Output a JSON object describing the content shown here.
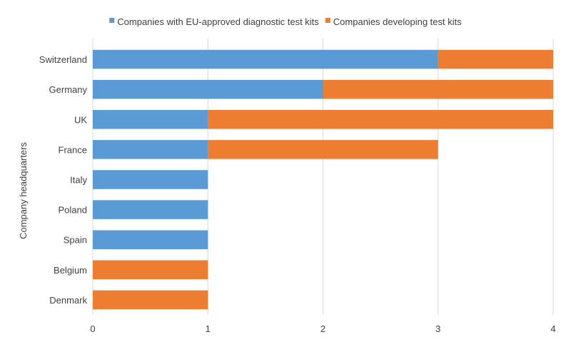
{
  "chart_data": {
    "type": "bar",
    "orientation": "horizontal",
    "stacked": true,
    "title": "",
    "xlabel": "",
    "ylabel": "Company headquarters",
    "categories": [
      "Switzerland",
      "Germany",
      "UK",
      "France",
      "Italy",
      "Poland",
      "Spain",
      "Belgium",
      "Denmark"
    ],
    "series": [
      {
        "name": "Companies with EU-approved diagnostic test kits",
        "color": "#5b9bd5",
        "values": [
          3,
          2,
          1,
          1,
          1,
          1,
          1,
          0,
          0
        ]
      },
      {
        "name": "Companies developing test kits",
        "color": "#ed7d31",
        "values": [
          1,
          2,
          3,
          2,
          0,
          0,
          0,
          1,
          1
        ]
      }
    ],
    "xlim": [
      0,
      4
    ],
    "xticks": [
      0,
      1,
      2,
      3,
      4
    ],
    "grid": true,
    "legend_position": "top"
  }
}
